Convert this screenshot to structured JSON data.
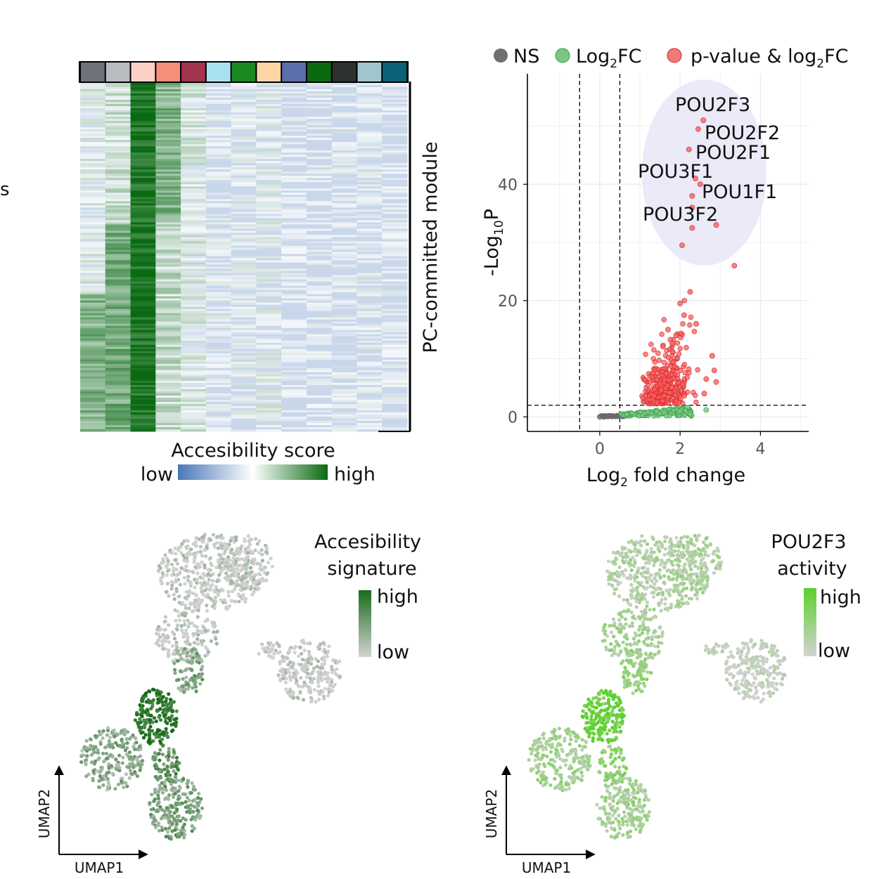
{
  "colors": {
    "access_low": "#4a76b8",
    "access_high": "#0a6a12",
    "ns": "#707070",
    "log2fc": "#2e9e3e",
    "pvalue": "#e11919",
    "highlight": "#e8e8f7",
    "umap_grey": "#cfcfcf",
    "sig_high": "#1a6b1a",
    "pou_high": "#5bd12a"
  },
  "heatmap": {
    "left_edge_text": "s",
    "module_label": "PC-committed module",
    "colorbar_title": "Accesibility score",
    "colorbar_low": "low",
    "colorbar_high": "high",
    "cluster_colors": [
      "#6e7279",
      "#b8bcc1",
      "#fbd0c6",
      "#f58e7a",
      "#a2364e",
      "#a9e0f1",
      "#1b8a22",
      "#fed5a5",
      "#5b6fad",
      "#0a6a12",
      "#2d3231",
      "#a0c5ce",
      "#0d6178"
    ],
    "column_level": [
      0.28,
      0.55,
      0.95,
      0.55,
      0.2,
      0.05,
      0.08,
      0.12,
      0.02,
      0.02,
      0.03,
      0.05,
      0.03
    ]
  },
  "chart_data": [
    {
      "type": "scatter",
      "title": "",
      "xlabel": "Log2 fold change",
      "ylabel": "-Log10P",
      "xlim": [
        -1.8,
        5.2
      ],
      "ylim": [
        -2.5,
        59
      ],
      "xticks": [
        0,
        2,
        4
      ],
      "yticks": [
        0,
        20,
        40
      ],
      "grid": true,
      "legend": {
        "position": "top",
        "entries": [
          {
            "key": "ns",
            "label": "NS"
          },
          {
            "key": "log2fc",
            "label": "Log2FC"
          },
          {
            "key": "pvalue",
            "label": "p-value & log2FC"
          }
        ]
      },
      "thresholds": {
        "x": [
          -0.5,
          0.5
        ],
        "y": [
          2
        ]
      },
      "highlight_ellipse": {
        "cx": 2.6,
        "cy": 42,
        "rx": 1.55,
        "ry": 16
      },
      "labels": [
        {
          "text": "POU2F3",
          "x": 2.58,
          "y": 51
        },
        {
          "text": "POU2F2",
          "x": 2.52,
          "y": 49
        },
        {
          "text": "POU2F1",
          "x": 2.2,
          "y": 46
        },
        {
          "text": "POU3F1",
          "x": 2.38,
          "y": 41
        },
        {
          "text": "POU1F1",
          "x": 2.38,
          "y": 38
        },
        {
          "text": "POU3F2",
          "x": 2.3,
          "y": 36
        }
      ],
      "series": [
        {
          "key": "pvalue",
          "points": [
            [
              2.58,
              51
            ],
            [
              2.45,
              49.5
            ],
            [
              2.22,
              46
            ],
            [
              2.38,
              41
            ],
            [
              2.5,
              40
            ],
            [
              2.3,
              38
            ],
            [
              2.3,
              36
            ],
            [
              2.9,
              33
            ],
            [
              2.3,
              32.5
            ],
            [
              2.05,
              29.5
            ],
            [
              3.35,
              26
            ],
            [
              2.25,
              21.5
            ],
            [
              2.0,
              19.5
            ],
            [
              2.1,
              17.5
            ],
            [
              2.4,
              16
            ],
            [
              1.7,
              15
            ],
            [
              1.9,
              14
            ],
            [
              2.8,
              10.5
            ],
            [
              2.85,
              8
            ],
            [
              2.65,
              6.5
            ],
            [
              2.6,
              4
            ],
            [
              2.9,
              6
            ]
          ]
        },
        {
          "key": "log2fc",
          "points": [
            [
              2.65,
              1.2
            ],
            [
              2.0,
              1.0
            ],
            [
              1.6,
              0.8
            ]
          ]
        },
        {
          "key": "ns",
          "points": [
            [
              0,
              0
            ],
            [
              0.1,
              0
            ],
            [
              0.2,
              0.05
            ],
            [
              0.3,
              0.05
            ],
            [
              0.4,
              0.1
            ],
            [
              0.45,
              0.1
            ]
          ]
        }
      ]
    },
    {
      "type": "scatter",
      "title": "Accesibility signature",
      "xlabel": "UMAP1",
      "ylabel": "UMAP2",
      "colorscale": {
        "low_label": "low",
        "high_label": "high"
      }
    },
    {
      "type": "scatter",
      "title": "POU2F3 activity",
      "xlabel": "UMAP1",
      "ylabel": "UMAP2",
      "colorscale": {
        "low_label": "low",
        "high_label": "high"
      }
    }
  ]
}
